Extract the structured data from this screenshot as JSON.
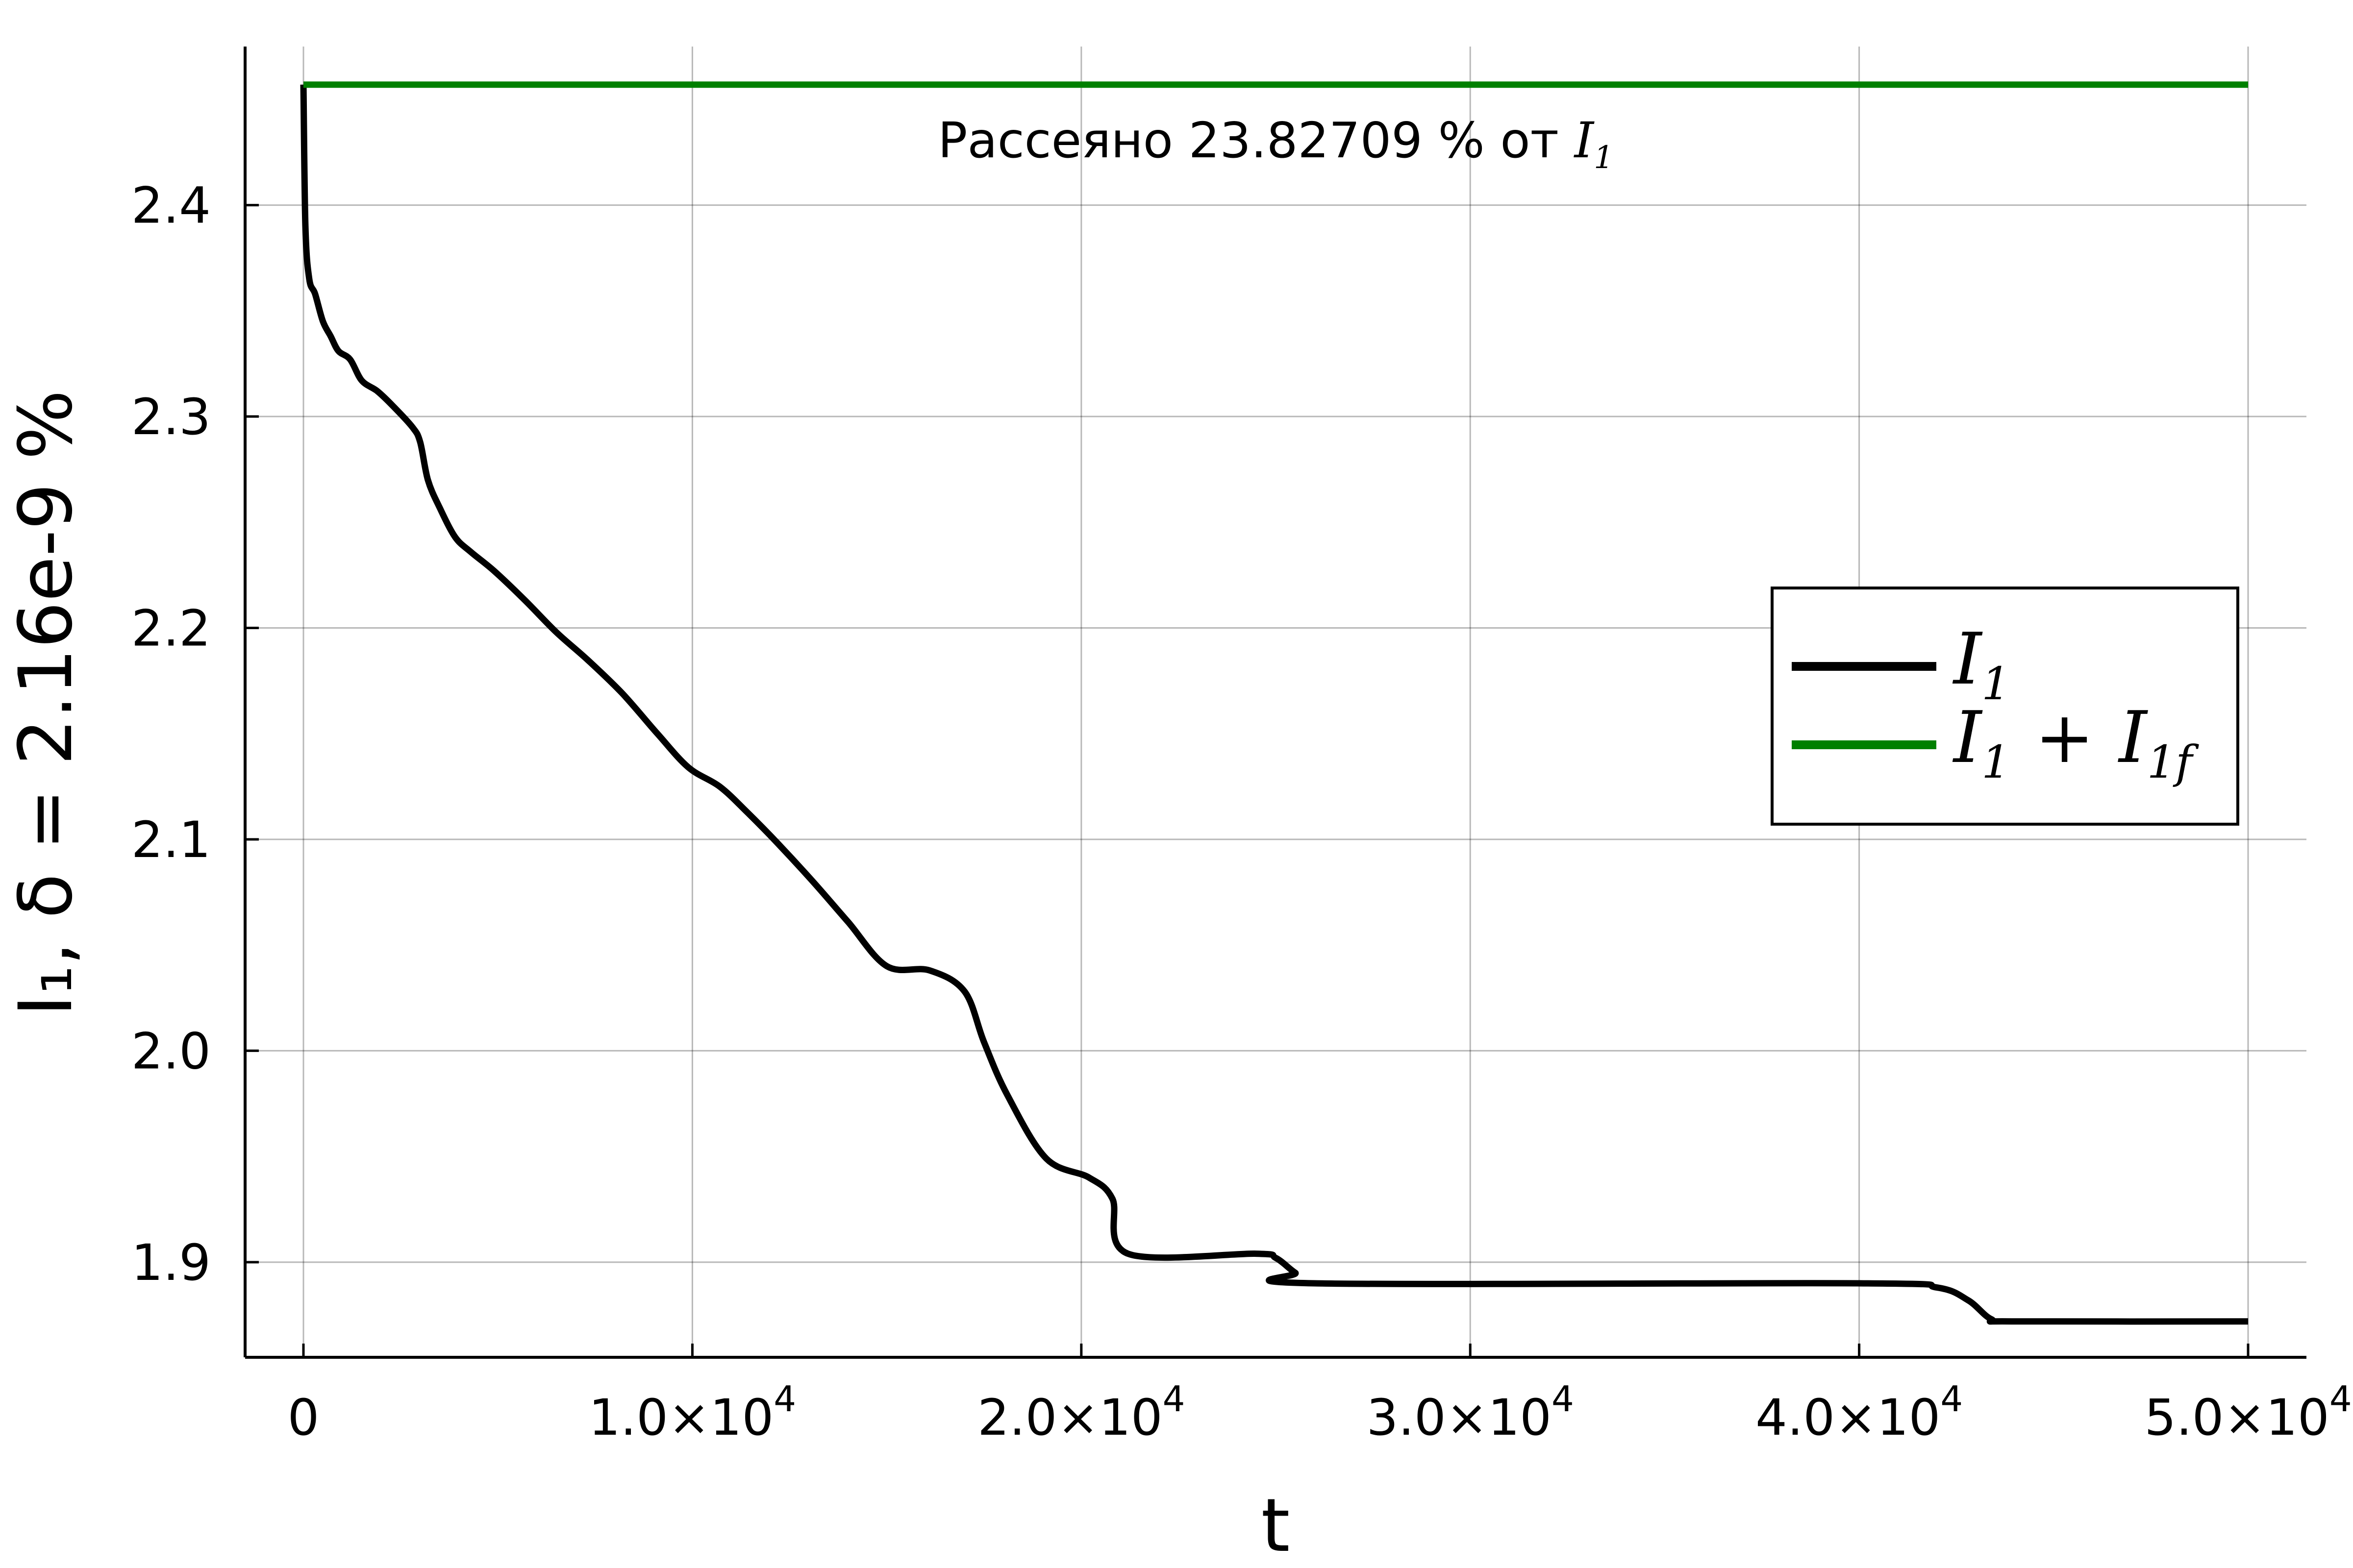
{
  "chart_data": {
    "type": "line",
    "title": "",
    "xlabel": "t",
    "ylabel": "I₁, δ = 2.16e-9 %",
    "xlim": [
      -1500,
      51500
    ],
    "ylim": [
      1.855,
      2.475
    ],
    "grid": true,
    "legend_position": "right",
    "x_ticks": [
      {
        "value": 0,
        "mantissa": "0",
        "exp": ""
      },
      {
        "value": 10000,
        "mantissa": "1.0×10",
        "exp": "4"
      },
      {
        "value": 20000,
        "mantissa": "2.0×10",
        "exp": "4"
      },
      {
        "value": 30000,
        "mantissa": "3.0×10",
        "exp": "4"
      },
      {
        "value": 40000,
        "mantissa": "4.0×10",
        "exp": "4"
      },
      {
        "value": 50000,
        "mantissa": "5.0×10",
        "exp": "4"
      }
    ],
    "y_ticks": [
      {
        "value": 1.9,
        "label": "1.9"
      },
      {
        "value": 2.0,
        "label": "2.0"
      },
      {
        "value": 2.1,
        "label": "2.1"
      },
      {
        "value": 2.2,
        "label": "2.2"
      },
      {
        "value": 2.3,
        "label": "2.3"
      },
      {
        "value": 2.4,
        "label": "2.4"
      }
    ],
    "annotation": {
      "prefix": "Рассеяно 23.82709 % от ",
      "symbol": "I",
      "subscript": "1",
      "x": 25000,
      "y": 2.43
    },
    "series": [
      {
        "name": "I₁",
        "legend_main": "I",
        "legend_sub": "1",
        "color": "#000000",
        "x": [
          0,
          50,
          150,
          300,
          500,
          700,
          900,
          1200,
          1500,
          1900,
          2300,
          2800,
          3000,
          3200,
          3500,
          3900,
          4300,
          4900,
          5700,
          6500,
          7300,
          8200,
          9100,
          9900,
          10700,
          11400,
          12200,
          13100,
          14000,
          15000,
          16100,
          17000,
          17500,
          18100,
          19100,
          20200,
          20800,
          21200,
          24500,
          25000,
          25500,
          26000,
          40000,
          42000,
          42800,
          43400,
          44000,
          50000
        ],
        "y": [
          2.457,
          2.39,
          2.365,
          2.358,
          2.345,
          2.338,
          2.331,
          2.327,
          2.317,
          2.312,
          2.305,
          2.295,
          2.288,
          2.27,
          2.257,
          2.243,
          2.236,
          2.227,
          2.213,
          2.198,
          2.185,
          2.169,
          2.15,
          2.134,
          2.125,
          2.113,
          2.098,
          2.08,
          2.061,
          2.04,
          2.038,
          2.028,
          2.004,
          1.979,
          1.949,
          1.94,
          1.93,
          1.904,
          1.904,
          1.902,
          1.895,
          1.89,
          1.89,
          1.888,
          1.882,
          1.873,
          1.872,
          1.872
        ]
      },
      {
        "name": "I₁ + I₁f",
        "legend_main": "I",
        "legend_sub": "1",
        "legend_plus": "+",
        "legend_main2": "I",
        "legend_sub2": "1f",
        "color": "#008000",
        "x": [
          0,
          50000
        ],
        "y": [
          2.457,
          2.457
        ]
      }
    ]
  }
}
